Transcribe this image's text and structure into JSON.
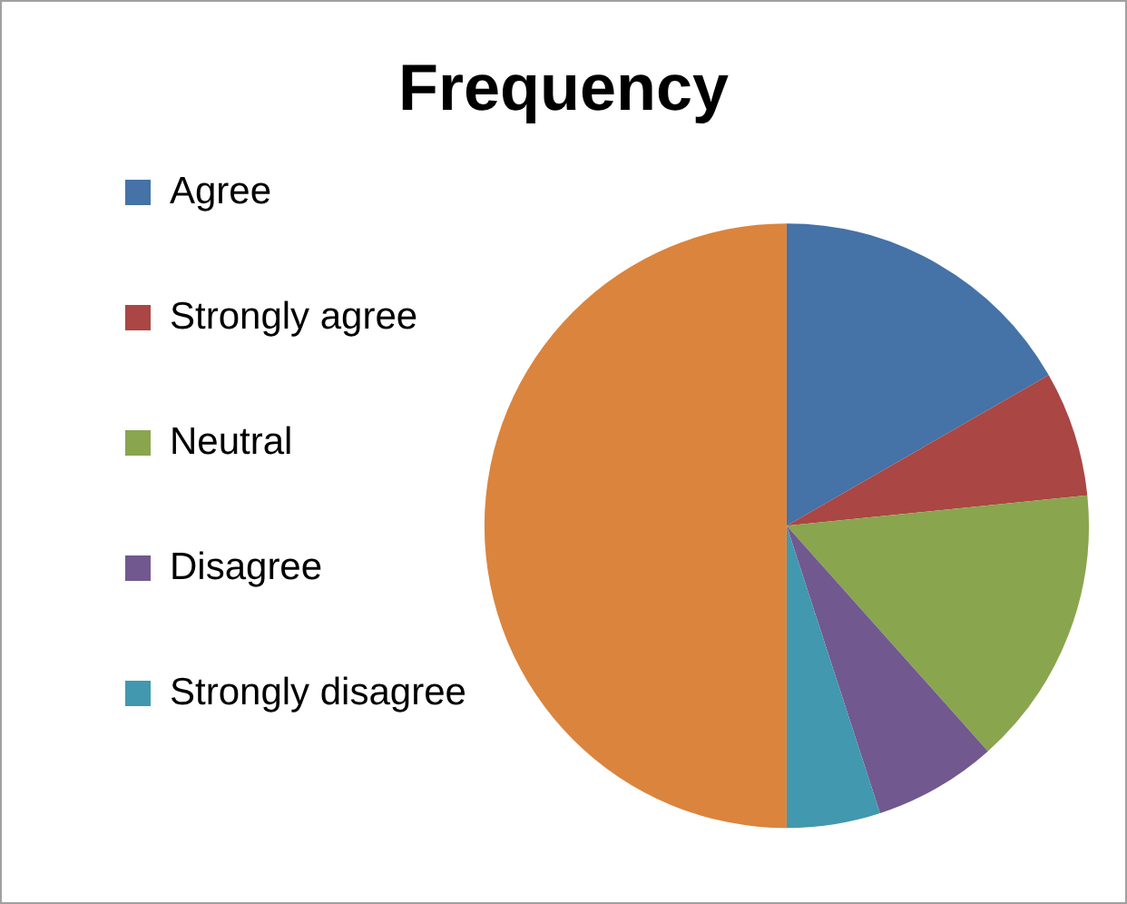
{
  "chart_data": {
    "type": "pie",
    "title": "Frequency",
    "categories": [
      "Agree",
      "Strongly agree",
      "Neutral",
      "Disagree",
      "Strongly disagree",
      null
    ],
    "values": [
      16.7,
      6.7,
      15,
      6.6,
      5,
      50
    ],
    "colors": [
      "#4572a7",
      "#aa4643",
      "#89a54e",
      "#71588f",
      "#4198af",
      "#db843d"
    ],
    "legend": "left"
  }
}
